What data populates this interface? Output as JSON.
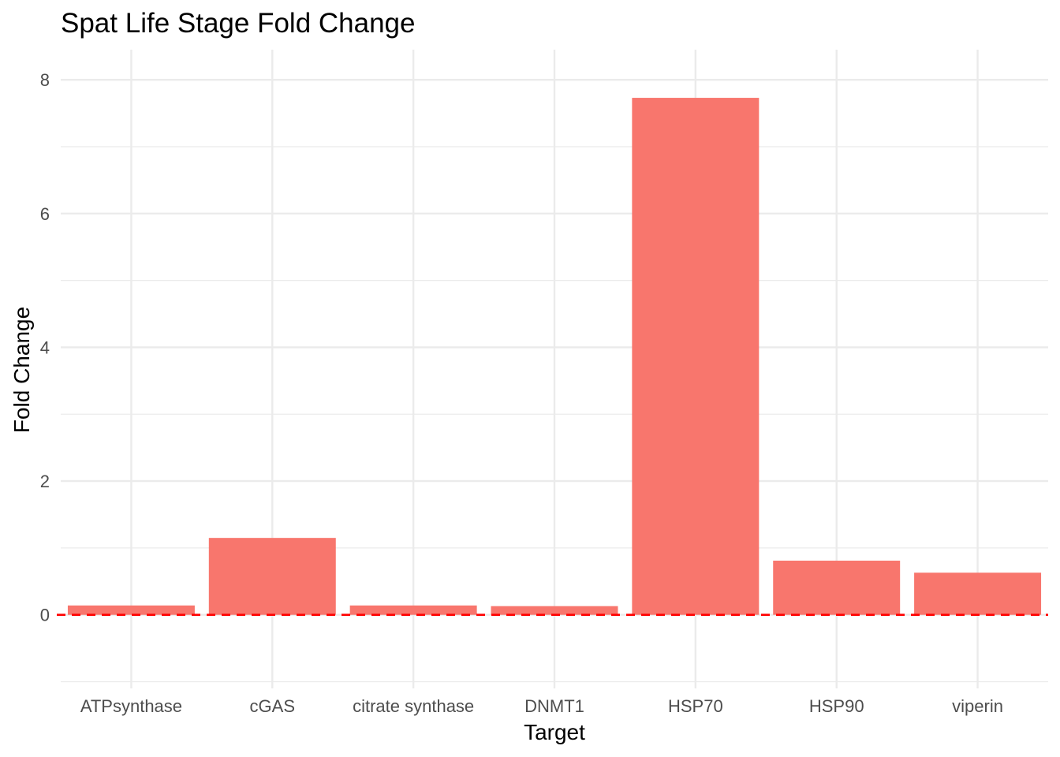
{
  "chart_data": {
    "type": "bar",
    "title": "Spat Life Stage Fold Change",
    "xlabel": "Target",
    "ylabel": "Fold Change",
    "categories": [
      "ATPsynthase",
      "cGAS",
      "citrate synthase",
      "DNMT1",
      "HSP70",
      "HSP90",
      "viperin"
    ],
    "values": [
      0.14,
      1.15,
      0.14,
      0.13,
      7.73,
      0.81,
      0.63
    ],
    "ylim": [
      -1.1,
      8.45
    ],
    "yticks": [
      0,
      2,
      4,
      6,
      8
    ],
    "ytick_labels": [
      "0",
      "2",
      "4",
      "6",
      "8"
    ],
    "reference_line": {
      "y": 0,
      "style": "dashed",
      "color": "#ff0000"
    },
    "bar_color": "#f8766d",
    "grid": true,
    "grid_color": "#ebebeb",
    "legend": "none"
  }
}
